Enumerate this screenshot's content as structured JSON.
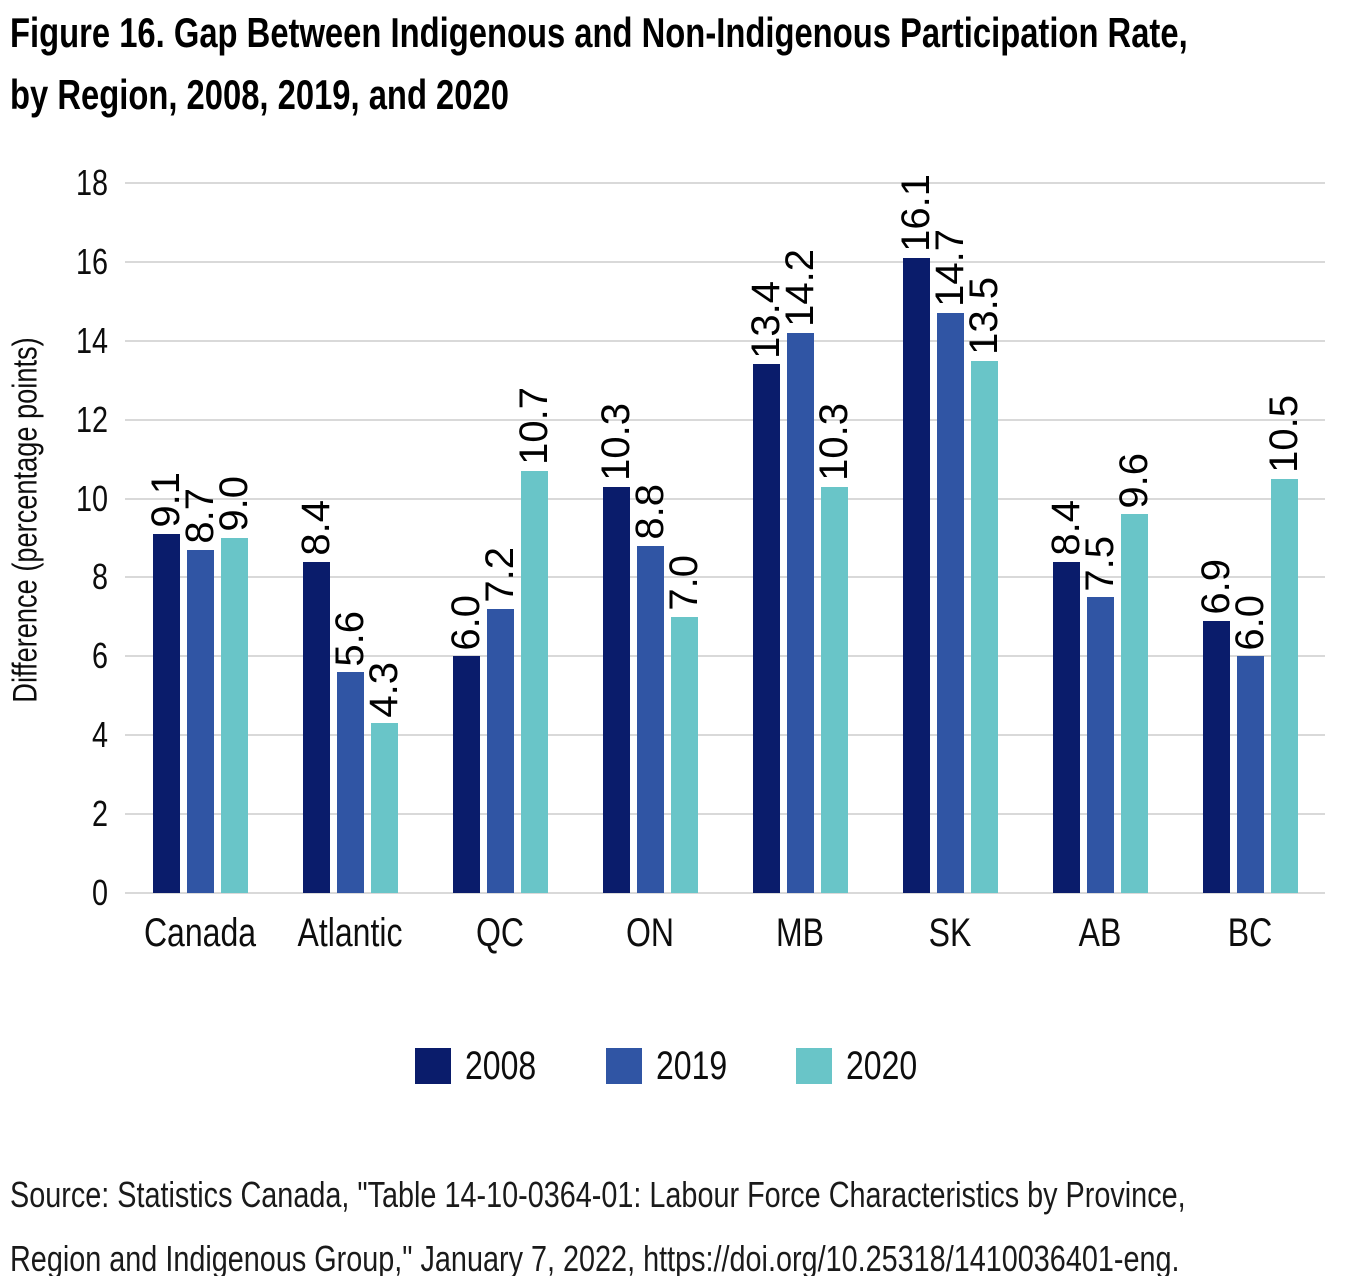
{
  "chart_data": {
    "type": "bar",
    "title_lines": [
      "Figure 16. Gap Between Indigenous and Non-Indigenous Participation Rate,",
      "by Region, 2008, 2019, and 2020"
    ],
    "ylabel": "Difference (percentage points)",
    "xlabel": "",
    "categories": [
      "Canada",
      "Atlantic",
      "QC",
      "ON",
      "MB",
      "SK",
      "AB",
      "BC"
    ],
    "series": [
      {
        "name": "2008",
        "color": "#0A1C6B",
        "values": [
          9.1,
          8.4,
          6.0,
          10.3,
          13.4,
          16.1,
          8.4,
          6.9
        ]
      },
      {
        "name": "2019",
        "color": "#3055A4",
        "values": [
          8.7,
          5.6,
          7.2,
          8.8,
          14.2,
          14.7,
          7.5,
          6.0
        ]
      },
      {
        "name": "2020",
        "color": "#69C5C8",
        "values": [
          9.0,
          4.3,
          10.7,
          7.0,
          10.3,
          13.5,
          9.6,
          10.5
        ]
      }
    ],
    "ylim": [
      0,
      18
    ],
    "yticks": [
      0,
      2,
      4,
      6,
      8,
      10,
      12,
      14,
      16,
      18
    ],
    "grid": true,
    "gridline_color": "#D9D9D9",
    "legend_position": "bottom",
    "data_labels": true,
    "data_label_decimals": 1,
    "text_color": "#0d0d0d"
  },
  "source": {
    "lines": [
      {
        "text": "Source: Statistics Canada, \"Table 14-10-0364-01: Labour Force Characteristics by Province,"
      },
      {
        "text": "Region and Indigenous Group,\" January 7, 2022, ",
        "link": "https://doi.org/10.25318/1410036401-eng."
      }
    ]
  }
}
